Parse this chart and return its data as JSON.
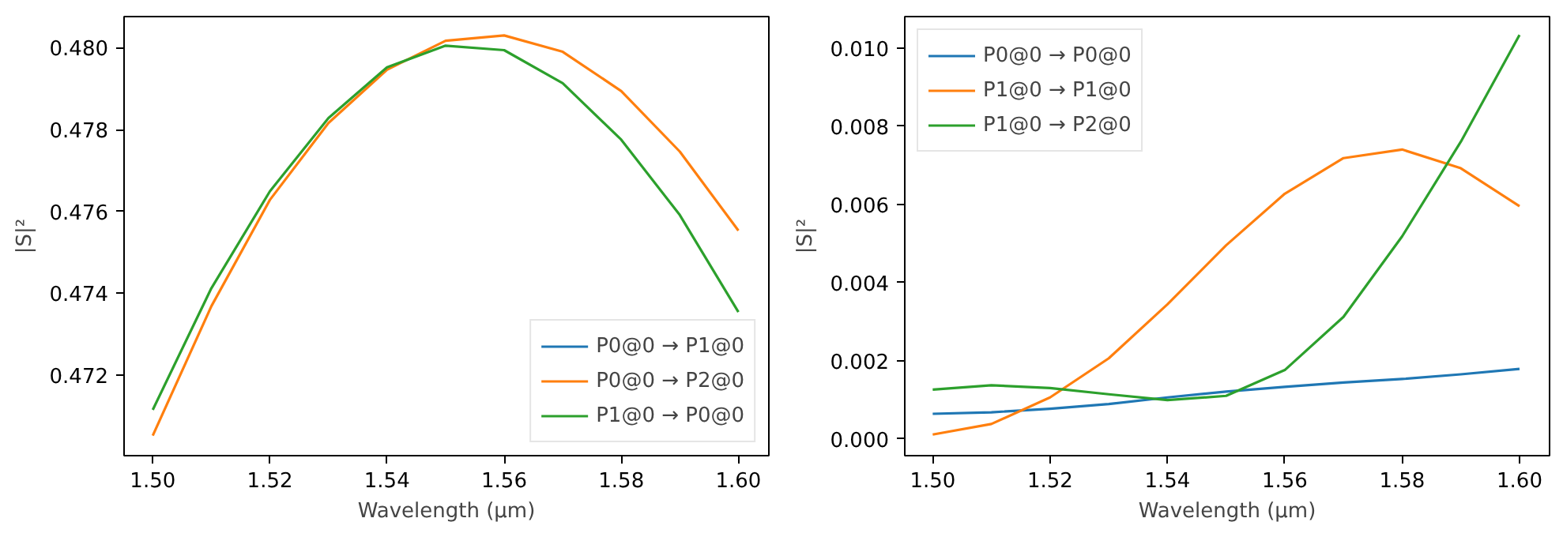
{
  "chart_data": [
    {
      "type": "line",
      "xlabel": "Wavelength (µm)",
      "ylabel": "|S|²",
      "legend": "bottom right",
      "x": [
        1.5,
        1.51,
        1.52,
        1.53,
        1.54,
        1.55,
        1.56,
        1.57,
        1.58,
        1.59,
        1.6
      ],
      "xlim": [
        1.4951,
        1.6052
      ],
      "ylim": [
        0.47003,
        0.48076
      ],
      "xticks": [
        {
          "value": 1.5,
          "label": "1.50"
        },
        {
          "value": 1.52,
          "label": "1.52"
        },
        {
          "value": 1.54,
          "label": "1.54"
        },
        {
          "value": 1.56,
          "label": "1.56"
        },
        {
          "value": 1.58,
          "label": "1.58"
        },
        {
          "value": 1.6,
          "label": "1.60"
        }
      ],
      "yticks": [
        {
          "value": 0.472,
          "label": "0.472"
        },
        {
          "value": 0.474,
          "label": "0.474"
        },
        {
          "value": 0.476,
          "label": "0.476"
        },
        {
          "value": 0.478,
          "label": "0.478"
        },
        {
          "value": 0.48,
          "label": "0.480"
        }
      ],
      "series": [
        {
          "name": "P0@0 → P1@0",
          "color": "#1f77b4",
          "values": [
            null,
            null,
            null,
            null,
            null,
            null,
            null,
            null,
            null,
            null,
            null
          ]
        },
        {
          "name": "P0@0 → P2@0",
          "color": "#ff7f0e",
          "values": [
            0.47052,
            0.47368,
            0.47628,
            0.47816,
            0.47946,
            0.48017,
            0.4803,
            0.4799,
            0.47894,
            0.47746,
            0.47553
          ]
        },
        {
          "name": "P1@0 → P0@0",
          "color": "#2ca02c",
          "values": [
            0.47115,
            0.47412,
            0.47649,
            0.47828,
            0.47952,
            0.48005,
            0.47994,
            0.47913,
            0.47775,
            0.47591,
            0.47354
          ]
        }
      ]
    },
    {
      "type": "line",
      "xlabel": "Wavelength (µm)",
      "ylabel": "|S|²",
      "legend": "top left",
      "x": [
        1.5,
        1.51,
        1.52,
        1.53,
        1.54,
        1.55,
        1.56,
        1.57,
        1.58,
        1.59,
        1.6
      ],
      "xlim": [
        1.49524,
        1.60512
      ],
      "ylim": [
        -0.00043,
        0.0108
      ],
      "xticks": [
        {
          "value": 1.5,
          "label": "1.50"
        },
        {
          "value": 1.52,
          "label": "1.52"
        },
        {
          "value": 1.54,
          "label": "1.54"
        },
        {
          "value": 1.56,
          "label": "1.56"
        },
        {
          "value": 1.58,
          "label": "1.58"
        },
        {
          "value": 1.6,
          "label": "1.60"
        }
      ],
      "yticks": [
        {
          "value": 0,
          "label": "0.000"
        },
        {
          "value": 0.002,
          "label": "0.002"
        },
        {
          "value": 0.004,
          "label": "0.004"
        },
        {
          "value": 0.006,
          "label": "0.006"
        },
        {
          "value": 0.008,
          "label": "0.008"
        },
        {
          "value": 0.01,
          "label": "0.010"
        }
      ],
      "series": [
        {
          "name": "P0@0 → P0@0",
          "color": "#1f77b4",
          "values": [
            0.00064,
            0.00068,
            0.00077,
            0.00089,
            0.00106,
            0.00121,
            0.00133,
            0.00144,
            0.00153,
            0.00165,
            0.00179
          ]
        },
        {
          "name": "P1@0 → P1@0",
          "color": "#ff7f0e",
          "values": [
            0.00011,
            0.00038,
            0.00106,
            0.00206,
            0.00344,
            0.00495,
            0.00627,
            0.00718,
            0.0074,
            0.00692,
            0.00595
          ]
        },
        {
          "name": "P1@0 → P2@0",
          "color": "#2ca02c",
          "values": [
            0.00126,
            0.00137,
            0.0013,
            0.00114,
            0.00099,
            0.0011,
            0.00176,
            0.00312,
            0.00518,
            0.0076,
            0.01033
          ]
        }
      ]
    }
  ]
}
